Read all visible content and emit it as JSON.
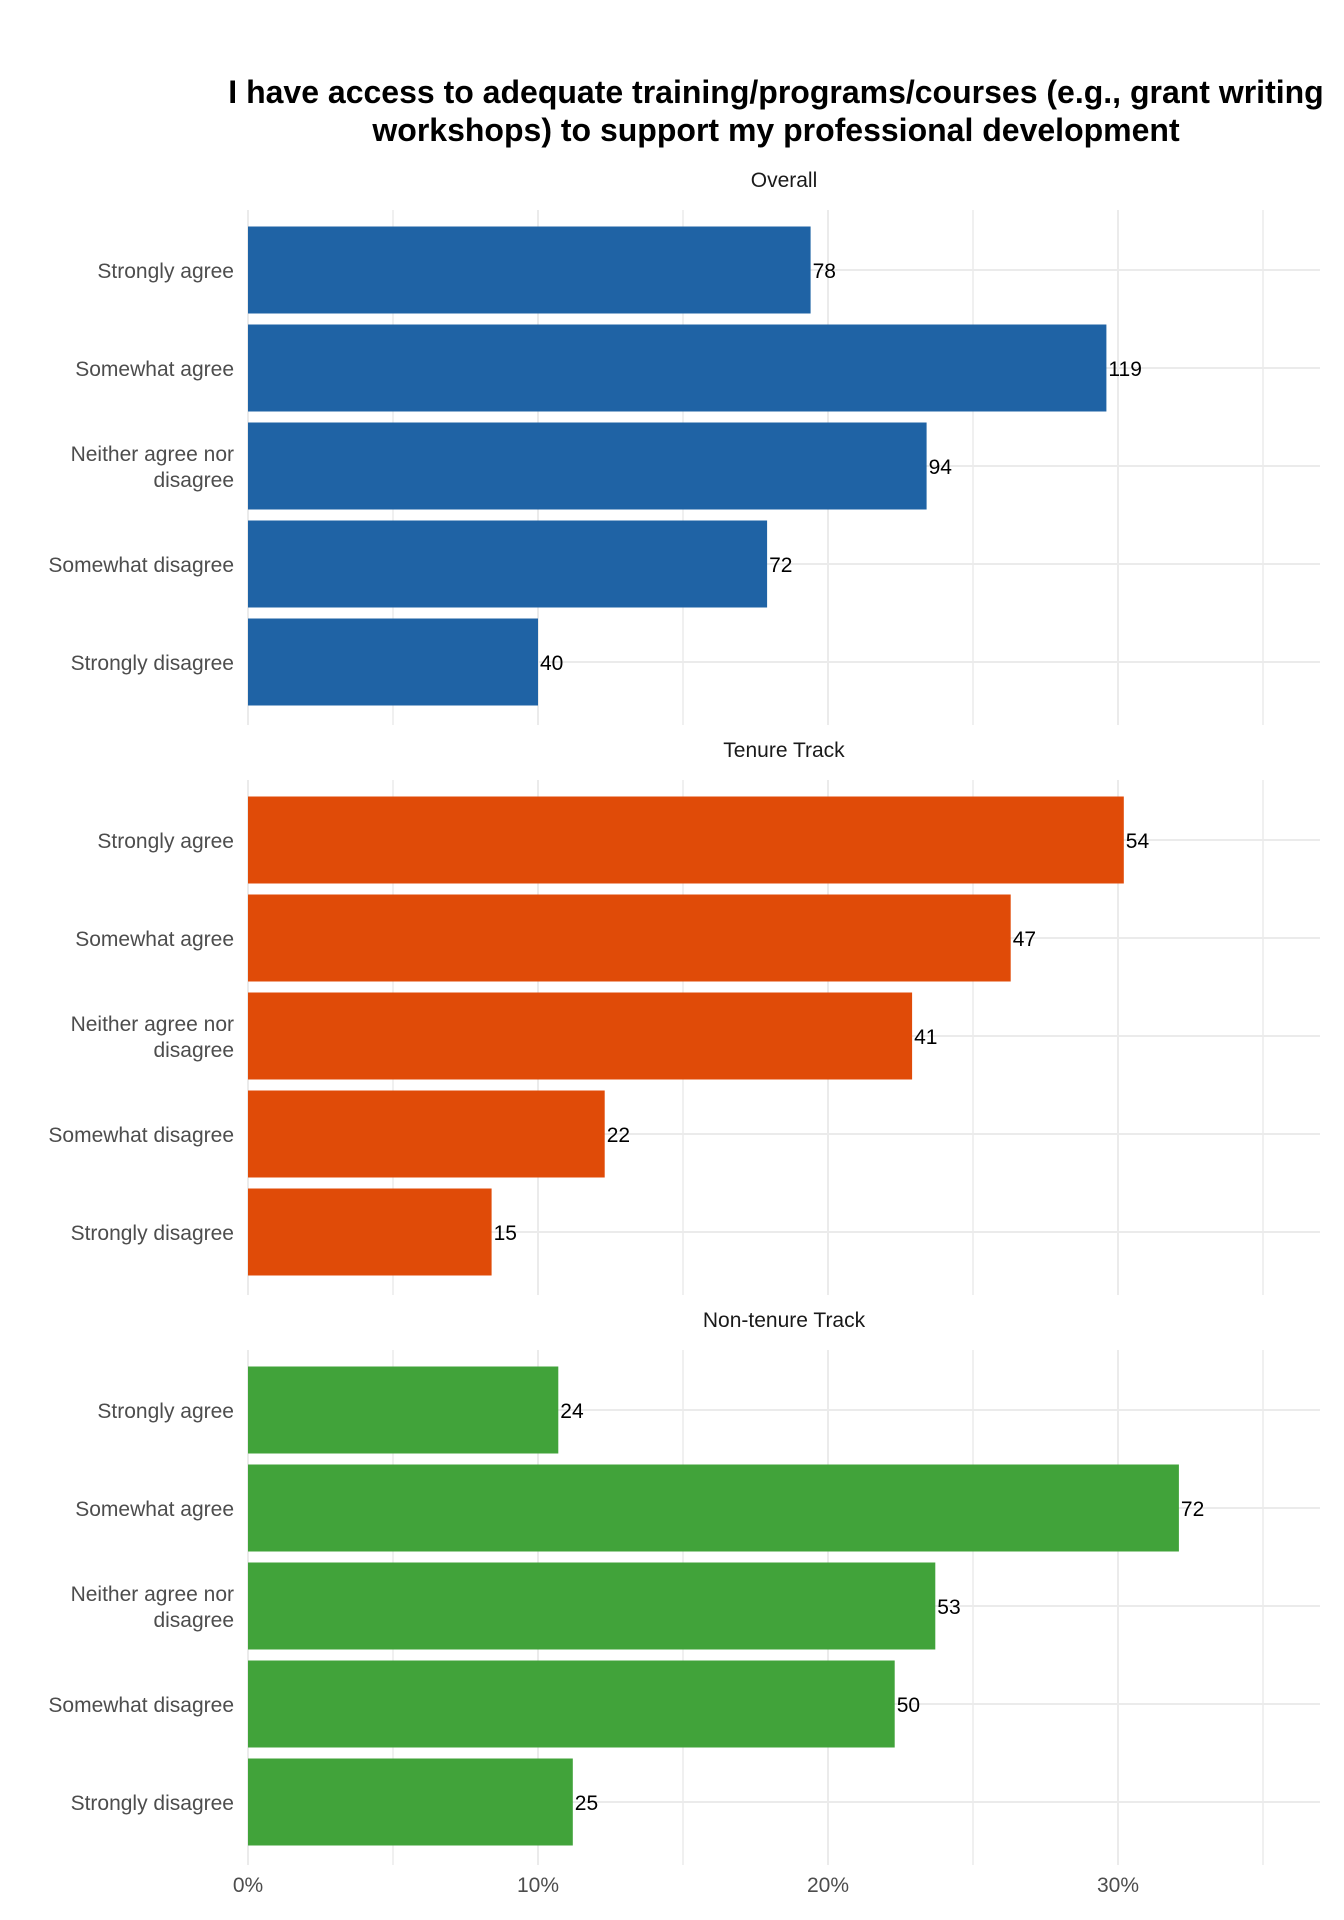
{
  "chart_data": {
    "type": "bar",
    "orientation": "horizontal",
    "title": "I have access to adequate training/programs/courses (e.g., grant writing workshops) to support my professional development",
    "categories": [
      "Strongly agree",
      "Somewhat agree",
      "Neither agree nor disagree",
      "Somewhat disagree",
      "Strongly disagree"
    ],
    "x_unit": "percent of respondents",
    "xlim": [
      0,
      0.37
    ],
    "x_ticks": [
      0,
      0.1,
      0.2,
      0.3
    ],
    "x_tick_labels": [
      "0%",
      "10%",
      "20%",
      "30%"
    ],
    "grid": true,
    "legend": "none",
    "panels": [
      {
        "name": "Overall",
        "color": "#1f63a5",
        "counts": [
          78,
          119,
          94,
          72,
          40
        ],
        "percents": [
          0.194,
          0.296,
          0.234,
          0.179,
          0.1
        ]
      },
      {
        "name": "Tenure Track",
        "color": "#e04b08",
        "counts": [
          54,
          47,
          41,
          22,
          15
        ],
        "percents": [
          0.302,
          0.263,
          0.229,
          0.123,
          0.084
        ]
      },
      {
        "name": "Non-tenure Track",
        "color": "#41a33a",
        "counts": [
          24,
          72,
          53,
          50,
          25
        ],
        "percents": [
          0.107,
          0.321,
          0.237,
          0.223,
          0.112
        ]
      }
    ]
  }
}
